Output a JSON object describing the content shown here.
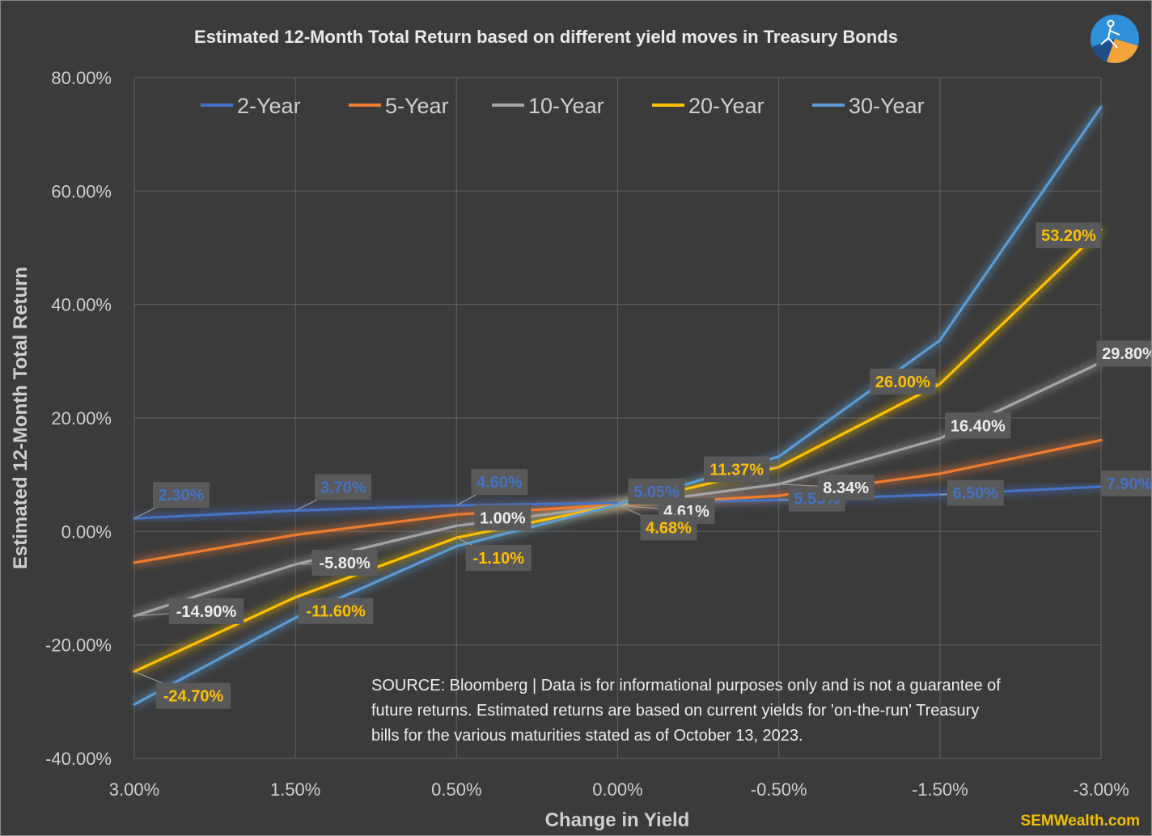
{
  "chart_data": {
    "type": "line",
    "title": "Estimated 12-Month Total Return based on different yield moves in Treasury Bonds",
    "xlabel": "Change in Yield",
    "ylabel": "Estimated 12-Month  Total Return",
    "categories": [
      "3.00%",
      "1.50%",
      "0.50%",
      "0.00%",
      "-0.50%",
      "-1.50%",
      "-3.00%"
    ],
    "y_ticks": [
      "80.00%",
      "60.00%",
      "40.00%",
      "20.00%",
      "0.00%",
      "-20.00%",
      "-40.00%"
    ],
    "ylim": [
      -40,
      80
    ],
    "grid": true,
    "legend_position": "top",
    "series": [
      {
        "name": "2-Year",
        "color": "#4472c4",
        "values": [
          2.3,
          3.7,
          4.6,
          5.05,
          5.53,
          6.5,
          7.9
        ]
      },
      {
        "name": "5-Year",
        "color": "#ed7d31",
        "values": [
          -5.5,
          -0.6,
          3.0,
          4.68,
          6.3,
          10.2,
          16.1
        ]
      },
      {
        "name": "10-Year",
        "color": "#a5a5a5",
        "values": [
          -14.9,
          -5.8,
          1.0,
          4.61,
          8.34,
          16.4,
          29.8
        ]
      },
      {
        "name": "20-Year",
        "color": "#ffc000",
        "values": [
          -24.7,
          -11.6,
          -1.1,
          4.68,
          11.37,
          26.0,
          53.2
        ]
      },
      {
        "name": "30-Year",
        "color": "#5b9bd5",
        "values": [
          -30.5,
          -15.2,
          -2.6,
          4.7,
          13.2,
          33.7,
          74.8
        ]
      }
    ],
    "data_labels": [
      {
        "series": 0,
        "point": 0,
        "text": "2.30%"
      },
      {
        "series": 0,
        "point": 1,
        "text": "3.70%"
      },
      {
        "series": 0,
        "point": 2,
        "text": "4.60%"
      },
      {
        "series": 0,
        "point": 3,
        "text": "5.05%"
      },
      {
        "series": 0,
        "point": 4,
        "text": "5.53%"
      },
      {
        "series": 0,
        "point": 5,
        "text": "6.50%"
      },
      {
        "series": 0,
        "point": 6,
        "text": "7.90%"
      },
      {
        "series": 2,
        "point": 0,
        "text": "-14.90%"
      },
      {
        "series": 2,
        "point": 1,
        "text": "-5.80%"
      },
      {
        "series": 2,
        "point": 2,
        "text": "1.00%"
      },
      {
        "series": 2,
        "point": 3,
        "text": "4.61%"
      },
      {
        "series": 2,
        "point": 4,
        "text": "8.34%"
      },
      {
        "series": 2,
        "point": 5,
        "text": "16.40%"
      },
      {
        "series": 2,
        "point": 6,
        "text": "29.80%"
      },
      {
        "series": 3,
        "point": 0,
        "text": "-24.70%"
      },
      {
        "series": 3,
        "point": 1,
        "text": "-11.60%"
      },
      {
        "series": 3,
        "point": 2,
        "text": "-1.10%"
      },
      {
        "series": 3,
        "point": 3,
        "text": "4.68%"
      },
      {
        "series": 3,
        "point": 4,
        "text": "11.37%"
      },
      {
        "series": 3,
        "point": 5,
        "text": "26.00%"
      },
      {
        "series": 3,
        "point": 6,
        "text": "53.20%"
      }
    ],
    "annotation": [
      "SOURCE: Bloomberg | Data is for informational purposes only and is not a guarantee of",
      "future returns. Estimated returns are based on current yields for 'on-the-run' Treasury",
      "bills for the various maturities stated as of October 13, 2023."
    ],
    "brand": "SEMWealth.com"
  }
}
